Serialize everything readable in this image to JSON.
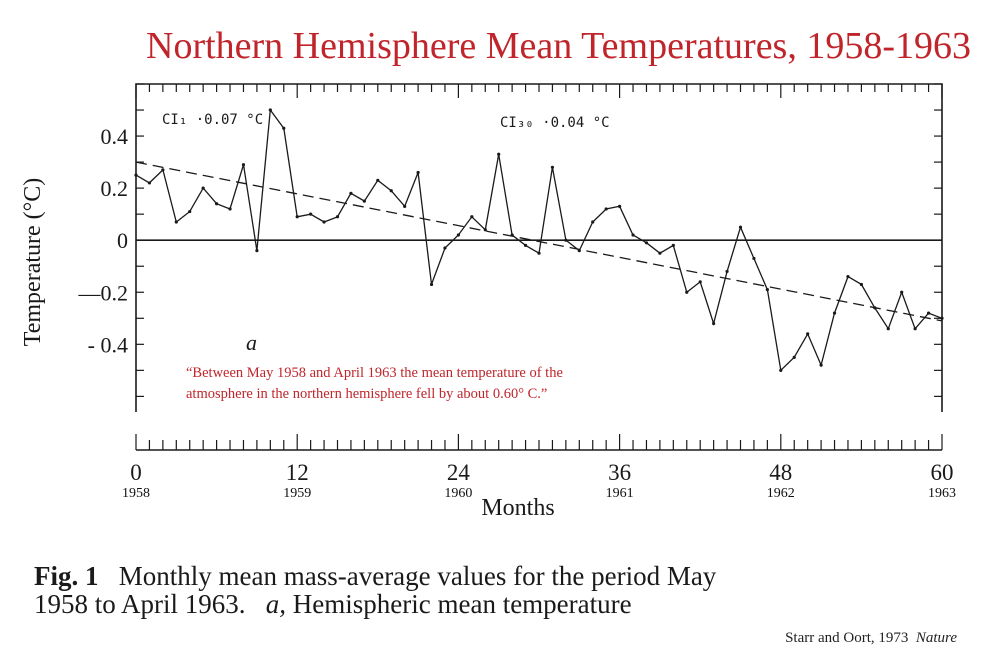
{
  "title": "Northern Hemisphere Mean Temperatures, 1958-1963",
  "caption": {
    "fig_label": "Fig. 1",
    "text_line1": "Monthly mean mass-average values for the period May",
    "text_line2_start": "1958 to April 1963.",
    "text_line2_a": "a,",
    "text_line2_end": "Hemispheric mean temperature"
  },
  "credit": {
    "authors": "Starr and Oort, 1973",
    "journal": "Nature"
  },
  "chart_data": {
    "type": "line",
    "ylabel": "Temperature (°C)",
    "xlabel": "Months",
    "xlim": [
      0,
      60
    ],
    "ylim": [
      -0.66,
      0.6
    ],
    "x_ticks": [
      {
        "value": 0,
        "label": "0",
        "year": "1958"
      },
      {
        "value": 12,
        "label": "12",
        "year": "1959"
      },
      {
        "value": 24,
        "label": "24",
        "year": "1960"
      },
      {
        "value": 36,
        "label": "36",
        "year": "1961"
      },
      {
        "value": 48,
        "label": "48",
        "year": "1962"
      },
      {
        "value": 60,
        "label": "60",
        "year": "1963"
      }
    ],
    "y_ticks": [
      {
        "value": 0.4,
        "label": "0.4"
      },
      {
        "value": 0.2,
        "label": "0.2"
      },
      {
        "value": 0,
        "label": "0"
      },
      {
        "value": -0.2,
        "label": "—0.2"
      },
      {
        "value": -0.4,
        "label": "- 0.4"
      }
    ],
    "annotations": {
      "ci1": "CI₁ ·0.07 °C",
      "ci30": "CI₃₀ ·0.04 °C",
      "panel_label": "a",
      "quote": "“Between May 1958 and April 1963 the mean temperature of the atmosphere in the northern hemisphere fell by about 0.60° C.”"
    },
    "series": [
      {
        "style": "solid",
        "x": [
          0,
          1,
          2,
          3,
          4,
          5,
          6,
          7,
          8,
          9,
          10,
          11,
          12,
          13,
          14,
          15,
          16,
          17,
          18,
          19,
          20,
          21,
          22,
          23,
          24,
          25,
          26,
          27,
          28,
          29,
          30,
          31,
          32,
          33,
          34,
          35,
          36,
          37,
          38,
          39,
          40,
          41,
          42,
          43,
          44,
          45,
          46,
          47,
          48,
          49,
          50,
          51,
          52,
          53,
          54,
          55,
          56,
          57,
          58,
          59,
          60
        ],
        "values": [
          0.25,
          0.22,
          0.27,
          0.07,
          0.11,
          0.2,
          0.14,
          0.12,
          0.29,
          -0.04,
          0.5,
          0.43,
          0.09,
          0.1,
          0.07,
          0.09,
          0.18,
          0.15,
          0.23,
          0.19,
          0.13,
          0.26,
          -0.17,
          -0.03,
          0.02,
          0.09,
          0.04,
          0.33,
          0.02,
          -0.02,
          -0.05,
          0.28,
          0.0,
          -0.04,
          0.07,
          0.12,
          0.13,
          0.02,
          -0.01,
          -0.05,
          -0.02,
          -0.2,
          -0.16,
          -0.32,
          -0.12,
          0.05,
          -0.07,
          -0.19,
          -0.5,
          -0.45,
          -0.36,
          -0.48,
          -0.28,
          -0.14,
          -0.17,
          -0.26,
          -0.34,
          -0.2,
          -0.34,
          -0.28,
          -0.3
        ]
      },
      {
        "style": "dashed",
        "x": [
          0,
          60
        ],
        "values": [
          0.3,
          -0.31
        ]
      }
    ]
  }
}
